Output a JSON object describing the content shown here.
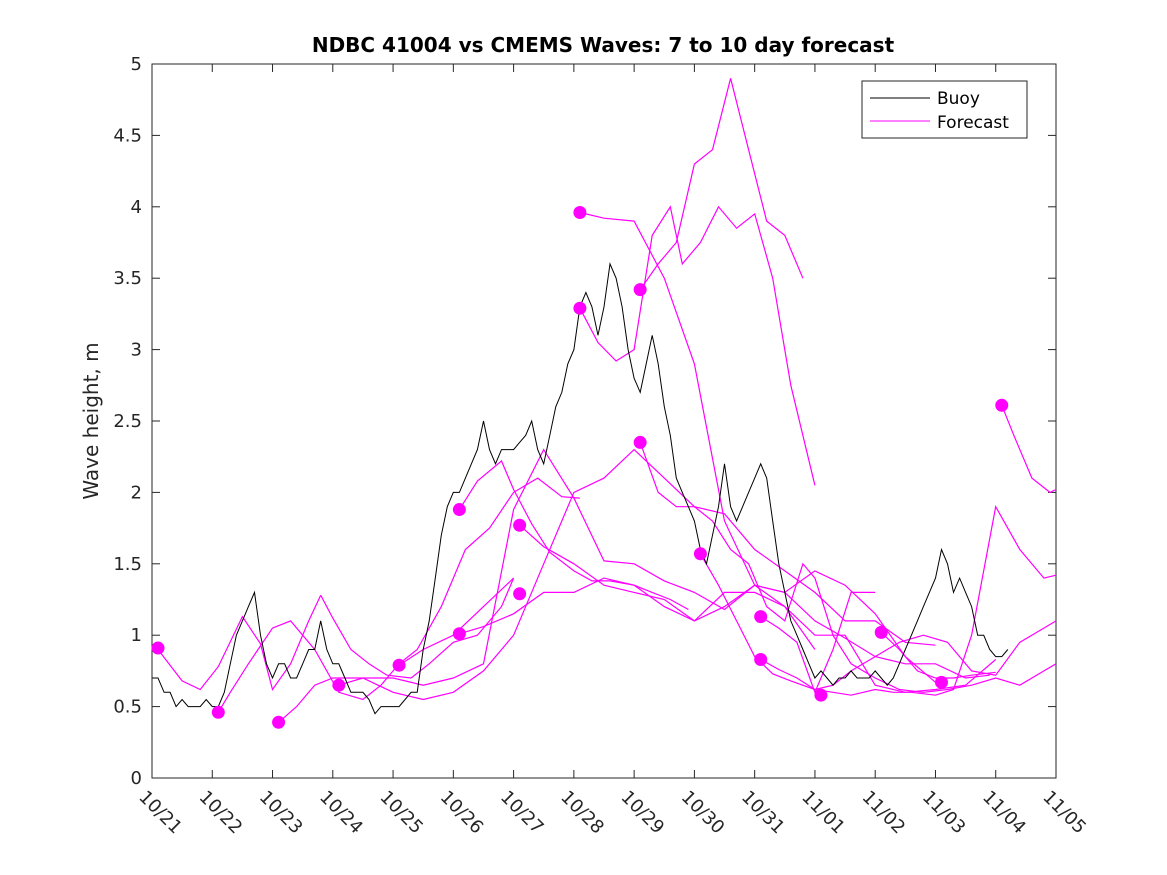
{
  "chart_data": {
    "type": "line",
    "title": "NDBC 41004 vs CMEMS Waves: 7 to 10 day forecast",
    "xlabel": "",
    "ylabel": "Wave height, m",
    "xlim": [
      0,
      15
    ],
    "ylim": [
      0,
      5
    ],
    "x_ticks": [
      0,
      1,
      2,
      3,
      4,
      5,
      6,
      7,
      8,
      9,
      10,
      11,
      12,
      13,
      14,
      15
    ],
    "x_tick_labels": [
      "10/21",
      "10/22",
      "10/23",
      "10/24",
      "10/25",
      "10/26",
      "10/27",
      "10/28",
      "10/29",
      "10/30",
      "10/31",
      "11/01",
      "11/02",
      "11/03",
      "11/04",
      "11/05"
    ],
    "y_ticks": [
      0,
      0.5,
      1,
      1.5,
      2,
      2.5,
      3,
      3.5,
      4,
      4.5,
      5
    ],
    "y_tick_labels": [
      "0",
      "0.5",
      "1",
      "1.5",
      "2",
      "2.5",
      "3",
      "3.5",
      "4",
      "4.5",
      "5"
    ],
    "grid": false,
    "legend": {
      "location": "top-right",
      "entries": [
        {
          "label": "Buoy",
          "color": "#000000"
        },
        {
          "label": "Forecast",
          "color": "#ff00ff"
        }
      ]
    },
    "colors": {
      "buoy": "#000000",
      "forecast": "#ff00ff"
    },
    "buoy": {
      "name": "Buoy",
      "x": [
        0,
        0.1,
        0.2,
        0.3,
        0.4,
        0.5,
        0.6,
        0.7,
        0.8,
        0.9,
        1.0,
        1.1,
        1.2,
        1.3,
        1.4,
        1.5,
        1.6,
        1.7,
        1.8,
        1.9,
        2.0,
        2.1,
        2.2,
        2.3,
        2.4,
        2.5,
        2.6,
        2.7,
        2.8,
        2.9,
        3.0,
        3.1,
        3.2,
        3.3,
        3.4,
        3.5,
        3.6,
        3.7,
        3.8,
        3.9,
        4.0,
        4.1,
        4.2,
        4.3,
        4.4,
        4.5,
        4.6,
        4.7,
        4.8,
        4.9,
        5.0,
        5.1,
        5.2,
        5.3,
        5.4,
        5.5,
        5.6,
        5.7,
        5.8,
        5.9,
        6.0,
        6.1,
        6.2,
        6.3,
        6.4,
        6.5,
        6.6,
        6.7,
        6.8,
        6.9,
        7.0,
        7.1,
        7.2,
        7.3,
        7.4,
        7.5,
        7.6,
        7.7,
        7.8,
        7.9,
        8.0,
        8.1,
        8.2,
        8.3,
        8.4,
        8.5,
        8.6,
        8.7,
        8.8,
        8.9,
        9.0,
        9.1,
        9.2,
        9.3,
        9.4,
        9.5,
        9.6,
        9.7,
        9.8,
        9.9,
        10.0,
        10.1,
        10.2,
        10.3,
        10.4,
        10.5,
        10.6,
        10.7,
        10.8,
        10.9,
        11.0,
        11.1,
        11.2,
        11.3,
        11.4,
        11.5,
        11.6,
        11.7,
        11.8,
        11.9,
        12.0,
        12.1,
        12.2,
        12.3,
        12.4,
        12.5,
        12.6,
        12.7,
        12.8,
        12.9,
        13.0,
        13.1,
        13.2,
        13.3,
        13.4,
        13.5,
        13.6,
        13.7,
        13.8,
        13.9,
        14.0,
        14.1,
        14.2
      ],
      "values": [
        0.7,
        0.7,
        0.6,
        0.6,
        0.5,
        0.55,
        0.5,
        0.5,
        0.5,
        0.55,
        0.5,
        0.5,
        0.6,
        0.8,
        1.0,
        1.1,
        1.2,
        1.3,
        1.0,
        0.8,
        0.7,
        0.8,
        0.8,
        0.7,
        0.7,
        0.8,
        0.9,
        0.9,
        1.1,
        0.9,
        0.8,
        0.8,
        0.7,
        0.6,
        0.6,
        0.6,
        0.55,
        0.45,
        0.5,
        0.5,
        0.5,
        0.5,
        0.55,
        0.6,
        0.6,
        0.9,
        1.1,
        1.4,
        1.7,
        1.9,
        2.0,
        2.0,
        2.1,
        2.2,
        2.3,
        2.5,
        2.3,
        2.2,
        2.3,
        2.3,
        2.3,
        2.35,
        2.4,
        2.5,
        2.3,
        2.2,
        2.4,
        2.6,
        2.7,
        2.9,
        3.0,
        3.3,
        3.4,
        3.3,
        3.1,
        3.3,
        3.6,
        3.5,
        3.3,
        3.0,
        2.8,
        2.7,
        2.9,
        3.1,
        2.9,
        2.6,
        2.4,
        2.1,
        2.0,
        1.9,
        1.8,
        1.6,
        1.5,
        1.7,
        1.9,
        2.2,
        1.9,
        1.8,
        1.9,
        2.0,
        2.1,
        2.2,
        2.1,
        1.8,
        1.5,
        1.3,
        1.1,
        1.0,
        0.9,
        0.8,
        0.7,
        0.75,
        0.7,
        0.65,
        0.7,
        0.7,
        0.75,
        0.7,
        0.7,
        0.7,
        0.75,
        0.7,
        0.65,
        0.7,
        0.8,
        0.9,
        1.0,
        1.1,
        1.2,
        1.3,
        1.4,
        1.6,
        1.5,
        1.3,
        1.4,
        1.3,
        1.2,
        1.0,
        1.0,
        0.9,
        0.85,
        0.85,
        0.9
      ]
    },
    "forecast_series": [
      {
        "name": "Forecast",
        "x": [
          0.1,
          0.5,
          0.8,
          1.1,
          1.5,
          1.8,
          2.0,
          2.3,
          2.6,
          2.8
        ],
        "values": [
          0.9,
          0.68,
          0.62,
          0.78,
          1.13,
          0.94,
          0.62,
          0.8,
          1.1,
          1.28
        ]
      },
      {
        "name": "Forecast",
        "x": [
          2.8,
          3.0,
          3.3,
          3.6,
          3.9,
          4.3,
          4.6,
          5.0,
          5.4,
          5.8,
          6.0
        ],
        "values": [
          1.28,
          1.12,
          0.9,
          0.8,
          0.72,
          0.7,
          0.8,
          0.95,
          1.0,
          1.2,
          1.4
        ]
      },
      {
        "name": "Forecast",
        "x": [
          1.1,
          1.3,
          1.6,
          2.0,
          2.3,
          2.7,
          3.1,
          3.5,
          3.8,
          4.1,
          4.4,
          4.8,
          5.2,
          5.6,
          6.0,
          6.4,
          6.8,
          7.1
        ],
        "values": [
          0.46,
          0.6,
          0.8,
          1.05,
          1.1,
          0.9,
          0.6,
          0.55,
          0.65,
          0.8,
          0.9,
          1.2,
          1.6,
          1.75,
          2.0,
          2.1,
          1.97,
          1.96
        ]
      },
      {
        "name": "Forecast",
        "x": [
          2.1,
          2.4,
          2.7,
          3.0,
          3.5,
          4.0,
          4.5,
          5.0,
          5.5,
          6.0,
          6.5,
          7.0,
          7.5,
          8.0,
          8.5,
          9.0,
          9.5,
          10.0,
          10.5,
          11.0,
          11.5,
          12.0,
          12.5,
          13.0
        ],
        "values": [
          0.39,
          0.5,
          0.65,
          0.7,
          0.7,
          0.6,
          0.55,
          0.6,
          0.75,
          1.0,
          1.5,
          2.0,
          2.1,
          2.3,
          2.1,
          1.9,
          1.85,
          1.6,
          1.45,
          1.3,
          1.1,
          1.1,
          0.95,
          0.93
        ]
      },
      {
        "name": "Forecast",
        "x": [
          3.1,
          3.5,
          4.0,
          4.5,
          5.0,
          5.5,
          6.0,
          6.5,
          7.0,
          7.5,
          8.0,
          8.5,
          9.0,
          9.5,
          10.0,
          10.5,
          11.0,
          11.5,
          12.0,
          12.5,
          13.0,
          13.5,
          13.9
        ],
        "values": [
          0.65,
          0.7,
          0.7,
          0.65,
          0.7,
          0.8,
          1.88,
          2.3,
          1.96,
          1.52,
          1.5,
          1.38,
          1.3,
          1.18,
          1.35,
          1.3,
          1.1,
          0.98,
          0.85,
          0.8,
          0.8,
          0.7,
          0.72
        ]
      },
      {
        "name": "Forecast",
        "x": [
          4.1,
          4.5,
          5.0,
          5.5,
          6.0
        ],
        "values": [
          0.79,
          0.9,
          1.0,
          1.2,
          1.4
        ]
      },
      {
        "name": "Forecast",
        "x": [
          5.1,
          5.5,
          6.0,
          6.5,
          7.0,
          7.5,
          8.0,
          8.5,
          9.0,
          9.5,
          10.0,
          10.5,
          11.0
        ],
        "values": [
          1.01,
          1.06,
          1.15,
          1.3,
          1.3,
          1.4,
          1.35,
          1.2,
          1.1,
          1.3,
          1.3,
          1.2,
          0.9
        ]
      },
      {
        "name": "Forecast",
        "x": [
          5.1,
          5.4,
          5.8,
          6.0,
          6.3,
          6.6,
          7.0,
          7.3,
          7.6,
          8.0,
          8.3,
          8.6,
          8.9
        ],
        "values": [
          1.88,
          2.08,
          2.22,
          2.02,
          1.78,
          1.58,
          1.45,
          1.38,
          1.38,
          1.35,
          1.3,
          1.25,
          1.18
        ]
      },
      {
        "name": "Forecast",
        "x": [
          6.1,
          6.5,
          7.0,
          7.5,
          8.0,
          8.5,
          9.0,
          9.5,
          10.0,
          10.5,
          11.0,
          11.5,
          12.0,
          12.5,
          13.0
        ],
        "values": [
          1.77,
          1.62,
          1.5,
          1.35,
          1.3,
          1.25,
          1.1,
          1.2,
          1.35,
          1.3,
          1.45,
          1.35,
          1.15,
          0.85,
          0.67
        ]
      },
      {
        "name": "Forecast",
        "x": [
          7.1,
          7.5,
          8.0,
          8.5,
          9.0,
          9.5,
          10.0,
          10.5,
          11.0,
          11.5,
          12.0,
          12.5,
          13.0,
          13.5,
          14.0
        ],
        "values": [
          3.96,
          3.92,
          3.9,
          3.5,
          2.9,
          1.8,
          1.35,
          1.2,
          1.0,
          1.0,
          0.65,
          0.6,
          0.62,
          0.65,
          0.83
        ]
      },
      {
        "name": "Forecast",
        "x": [
          7.1,
          7.4,
          7.7,
          8.0,
          8.3,
          8.6,
          8.8,
          9.1,
          9.4,
          9.7,
          10.0,
          10.3,
          10.6,
          11.0
        ],
        "values": [
          3.29,
          3.05,
          2.92,
          3.0,
          3.8,
          4.0,
          3.6,
          3.75,
          4.0,
          3.85,
          3.95,
          3.5,
          2.75,
          2.05
        ]
      },
      {
        "name": "Forecast",
        "x": [
          8.1,
          8.4,
          8.7,
          9.0,
          9.3,
          9.6,
          9.9,
          10.2,
          10.5,
          10.8
        ],
        "values": [
          3.42,
          3.6,
          3.75,
          4.3,
          4.4,
          4.9,
          4.4,
          3.9,
          3.8,
          3.5
        ]
      },
      {
        "name": "Forecast",
        "x": [
          8.1,
          8.4,
          8.7,
          9.0,
          9.3,
          9.6,
          9.9,
          10.2,
          10.5,
          10.8,
          11.0,
          11.3,
          11.6,
          12.0,
          12.4,
          12.8,
          13.2,
          13.6,
          14.0,
          14.4,
          14.8,
          15.0
        ],
        "values": [
          2.35,
          2.0,
          1.9,
          1.9,
          1.8,
          1.6,
          1.5,
          1.2,
          1.1,
          1.5,
          1.4,
          1.0,
          0.8,
          0.7,
          0.62,
          0.6,
          0.62,
          0.65,
          0.7,
          0.65,
          0.75,
          0.8
        ]
      },
      {
        "name": "Forecast",
        "x": [
          9.1,
          9.4,
          9.7,
          10.0,
          10.3,
          10.6,
          11.0,
          11.3,
          11.6,
          12.0,
          12.4,
          12.8,
          13.2,
          13.6,
          14.0,
          14.4,
          14.8,
          15.0
        ],
        "values": [
          1.57,
          1.35,
          1.1,
          0.85,
          0.73,
          0.68,
          0.62,
          0.65,
          0.75,
          0.85,
          0.95,
          1.0,
          0.95,
          0.75,
          0.72,
          0.95,
          1.05,
          1.1
        ]
      },
      {
        "name": "Forecast",
        "x": [
          10.1,
          10.4,
          10.7,
          11.0,
          11.3,
          11.6,
          12.0,
          12.3,
          12.6,
          13.0,
          13.3,
          13.6,
          14.0,
          14.4,
          14.8,
          15.0
        ],
        "values": [
          0.83,
          0.76,
          0.7,
          0.62,
          0.6,
          0.58,
          0.62,
          0.6,
          0.6,
          0.58,
          0.62,
          1.0,
          1.9,
          1.6,
          1.4,
          1.42
        ]
      },
      {
        "name": "Forecast",
        "x": [
          10.1,
          10.4,
          10.7,
          11.0,
          11.3,
          11.6,
          12.0
        ],
        "values": [
          1.13,
          1.05,
          0.95,
          0.6,
          0.9,
          1.3,
          1.3
        ]
      },
      {
        "name": "Forecast",
        "x": [
          12.1,
          12.4,
          12.7,
          13.0,
          13.3,
          13.6,
          14.0
        ],
        "values": [
          1.02,
          0.9,
          0.75,
          0.7,
          0.7,
          0.72,
          0.74
        ]
      },
      {
        "name": "Forecast",
        "x": [
          14.1,
          14.3,
          14.6,
          14.9,
          15.0
        ],
        "values": [
          2.61,
          2.4,
          2.1,
          2.0,
          2.02
        ]
      }
    ],
    "forecast_markers": {
      "x": [
        0.1,
        1.1,
        2.1,
        3.1,
        4.1,
        5.1,
        5.1,
        6.1,
        6.1,
        7.1,
        7.1,
        8.1,
        8.1,
        9.1,
        10.1,
        10.1,
        11.1,
        12.1,
        13.1,
        14.1
      ],
      "values": [
        0.91,
        0.46,
        0.39,
        0.65,
        0.79,
        1.01,
        1.88,
        1.29,
        1.77,
        3.96,
        3.29,
        3.42,
        2.35,
        1.57,
        1.13,
        0.83,
        0.58,
        1.02,
        0.67,
        2.61
      ]
    }
  }
}
